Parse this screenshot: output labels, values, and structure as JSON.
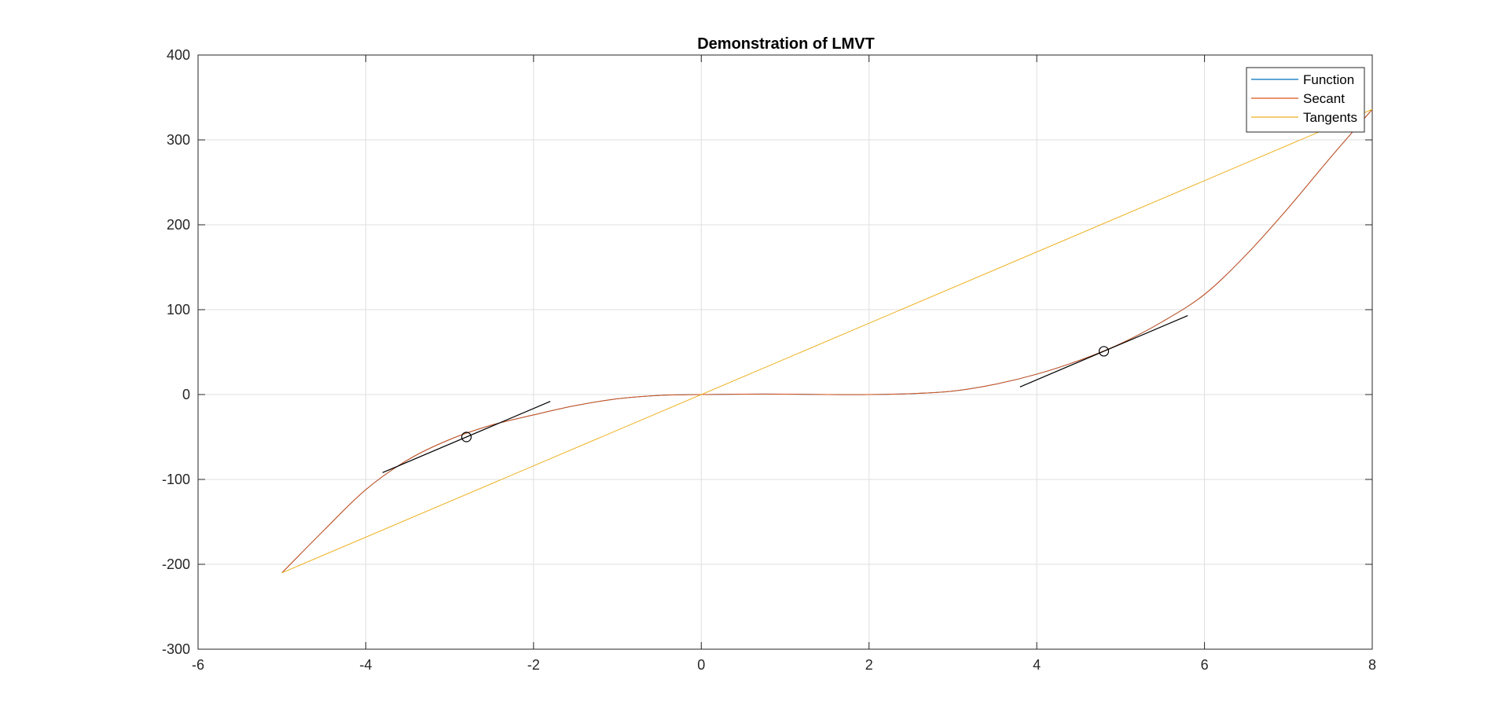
{
  "chart_data": {
    "type": "line",
    "title": "Demonstration of LMVT",
    "xlabel": "",
    "ylabel": "",
    "xlim": [
      -6,
      8
    ],
    "ylim": [
      -300,
      400
    ],
    "xticks": [
      -6,
      -4,
      -2,
      0,
      2,
      4,
      6,
      8
    ],
    "yticks": [
      -300,
      -200,
      -100,
      0,
      100,
      200,
      300,
      400
    ],
    "xtick_labels": [
      "-6",
      "-4",
      "-2",
      "0",
      "2",
      "4",
      "6",
      "8"
    ],
    "ytick_labels": [
      "-300",
      "-200",
      "-100",
      "0",
      "100",
      "200",
      "300",
      "400"
    ],
    "grid": true,
    "box": true,
    "legend_position": "top-right",
    "series": [
      {
        "name": "Function",
        "color": "#0072BD",
        "x": [
          -5.0,
          -4.5,
          -4.0,
          -3.5,
          -3.0,
          -2.5,
          -2.0,
          -1.5,
          -1.0,
          -0.5,
          0.0,
          0.5,
          1.0,
          1.5,
          2.0,
          2.5,
          3.0,
          3.5,
          4.0,
          4.5,
          5.0,
          5.5,
          6.0,
          6.5,
          7.0,
          7.5,
          8.0
        ],
        "y": [
          -210,
          -160,
          -112,
          -77,
          -53,
          -36,
          -24,
          -13,
          -5,
          -1,
          0,
          0.5,
          0.5,
          0,
          0,
          1,
          4,
          12,
          24,
          40,
          60,
          86,
          118,
          165,
          220,
          279,
          336
        ]
      },
      {
        "name": "Secant",
        "color": "#D95319",
        "x": [
          -5.0,
          -4.5,
          -4.0,
          -3.5,
          -3.0,
          -2.5,
          -2.0,
          -1.5,
          -1.0,
          -0.5,
          0.0,
          0.5,
          1.0,
          1.5,
          2.0,
          2.5,
          3.0,
          3.5,
          4.0,
          4.5,
          5.0,
          5.5,
          6.0,
          6.5,
          7.0,
          7.5,
          8.0
        ],
        "y": [
          -210,
          -160,
          -112,
          -77,
          -53,
          -36,
          -24,
          -13,
          -5,
          -1,
          0,
          0.5,
          0.5,
          0,
          0,
          1,
          4,
          12,
          24,
          40,
          60,
          86,
          118,
          165,
          220,
          279,
          336
        ]
      },
      {
        "name": "Tangents",
        "color": "#EDB120",
        "x": [
          -5,
          8
        ],
        "y": [
          -210,
          336
        ]
      }
    ],
    "tangent_segments": [
      {
        "color": "#000000",
        "x": [
          -3.8,
          -1.8
        ],
        "y": [
          -92,
          -8
        ]
      },
      {
        "color": "#000000",
        "x": [
          3.8,
          5.8
        ],
        "y": [
          9,
          93
        ]
      }
    ],
    "points": [
      {
        "x": -2.8,
        "y": -50,
        "marker": "circle",
        "color": "#000000"
      },
      {
        "x": 4.8,
        "y": 51,
        "marker": "circle",
        "color": "#000000"
      }
    ]
  },
  "colors": {
    "axis": "#262626",
    "grid": "#dfdfdf",
    "background": "#ffffff"
  }
}
